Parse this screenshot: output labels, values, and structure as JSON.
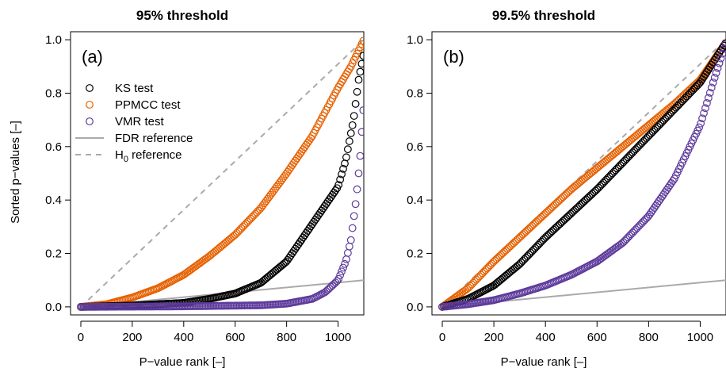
{
  "chart_data": [
    {
      "type": "scatter",
      "title": "95% threshold",
      "panel_label": "(a)",
      "xlabel": "P−value rank [–]",
      "ylabel": "Sorted p−values [–]",
      "xlim": [
        -40,
        1100
      ],
      "ylim": [
        -0.03,
        1.03
      ],
      "xticks": [
        0,
        200,
        400,
        600,
        800,
        1000
      ],
      "yticks": [
        0.0,
        0.2,
        0.4,
        0.6,
        0.8,
        1.0
      ],
      "xtick_labels": [
        "0",
        "200",
        "400",
        "600",
        "800",
        "1000"
      ],
      "ytick_labels": [
        "0.0",
        "0.2",
        "0.4",
        "0.6",
        "0.8",
        "1.0"
      ],
      "legend": {
        "position": "top-left",
        "entries": [
          {
            "label": "KS test",
            "marker": "circle",
            "color": "#000000"
          },
          {
            "label": "PPMCC test",
            "marker": "circle",
            "color": "#E66100"
          },
          {
            "label": "VMR test",
            "marker": "circle",
            "color": "#5D3A9B"
          },
          {
            "label": "FDR reference",
            "marker": "solid-line",
            "color": "#AAAAAA"
          },
          {
            "label": "H",
            "label_sub": "0",
            "label_rest": " reference",
            "marker": "dashed-line",
            "color": "#AAAAAA"
          }
        ]
      },
      "series": [
        {
          "name": "PPMCC test",
          "color": "#E66100",
          "x": [
            0,
            100,
            200,
            300,
            400,
            500,
            600,
            700,
            800,
            900,
            1000,
            1050,
            1100
          ],
          "y": [
            0.0,
            0.01,
            0.035,
            0.07,
            0.12,
            0.19,
            0.27,
            0.37,
            0.5,
            0.64,
            0.82,
            0.9,
            1.0
          ]
        },
        {
          "name": "KS test",
          "color": "#000000",
          "x": [
            0,
            200,
            400,
            500,
            600,
            700,
            800,
            900,
            950,
            1000,
            1030,
            1060,
            1080,
            1100
          ],
          "y": [
            0.0,
            0.005,
            0.015,
            0.03,
            0.05,
            0.09,
            0.17,
            0.31,
            0.38,
            0.45,
            0.55,
            0.7,
            0.85,
            0.95
          ]
        },
        {
          "name": "VMR test",
          "color": "#5D3A9B",
          "x": [
            0,
            400,
            700,
            800,
            900,
            950,
            1000,
            1030,
            1050,
            1070,
            1085,
            1095,
            1100
          ],
          "y": [
            0.0,
            0.002,
            0.006,
            0.012,
            0.03,
            0.055,
            0.1,
            0.17,
            0.25,
            0.4,
            0.55,
            0.7,
            0.76
          ]
        }
      ],
      "reference_lines": [
        {
          "name": "FDR reference",
          "style": "solid",
          "color": "#AAAAAA",
          "x": [
            0,
            1100
          ],
          "y": [
            0.0,
            0.1
          ]
        },
        {
          "name": "H0 reference",
          "style": "dashed",
          "color": "#AAAAAA",
          "x": [
            0,
            1100
          ],
          "y": [
            0.0,
            1.0
          ]
        }
      ]
    },
    {
      "type": "scatter",
      "title": "99.5% threshold",
      "panel_label": "(b)",
      "xlabel": "P−value rank [–]",
      "ylabel": "",
      "xlim": [
        -40,
        1100
      ],
      "ylim": [
        -0.03,
        1.03
      ],
      "xticks": [
        0,
        200,
        400,
        600,
        800,
        1000
      ],
      "yticks": [
        0.0,
        0.2,
        0.4,
        0.6,
        0.8,
        1.0
      ],
      "xtick_labels": [
        "0",
        "200",
        "400",
        "600",
        "800",
        "1000"
      ],
      "ytick_labels": [
        "0.0",
        "0.2",
        "0.4",
        "0.6",
        "0.8",
        "1.0"
      ],
      "series": [
        {
          "name": "PPMCC test",
          "color": "#E66100",
          "x": [
            0,
            100,
            200,
            300,
            400,
            500,
            600,
            700,
            800,
            900,
            1000,
            1100
          ],
          "y": [
            0.0,
            0.07,
            0.17,
            0.26,
            0.35,
            0.44,
            0.52,
            0.6,
            0.68,
            0.76,
            0.85,
            0.99
          ]
        },
        {
          "name": "KS test",
          "color": "#000000",
          "x": [
            0,
            100,
            200,
            300,
            400,
            500,
            600,
            700,
            800,
            900,
            1000,
            1100
          ],
          "y": [
            0.0,
            0.03,
            0.08,
            0.16,
            0.26,
            0.35,
            0.44,
            0.54,
            0.64,
            0.74,
            0.84,
            0.99
          ]
        },
        {
          "name": "VMR test",
          "color": "#5D3A9B",
          "x": [
            0,
            100,
            200,
            300,
            400,
            500,
            600,
            700,
            800,
            900,
            1000,
            1050,
            1100
          ],
          "y": [
            0.0,
            0.01,
            0.025,
            0.05,
            0.08,
            0.12,
            0.17,
            0.24,
            0.34,
            0.48,
            0.68,
            0.84,
            0.99
          ]
        }
      ],
      "reference_lines": [
        {
          "name": "FDR reference",
          "style": "solid",
          "color": "#AAAAAA",
          "x": [
            0,
            1100
          ],
          "y": [
            0.0,
            0.1
          ]
        },
        {
          "name": "H0 reference",
          "style": "dashed",
          "color": "#AAAAAA",
          "x": [
            0,
            1100
          ],
          "y": [
            0.0,
            1.0
          ]
        }
      ]
    }
  ]
}
